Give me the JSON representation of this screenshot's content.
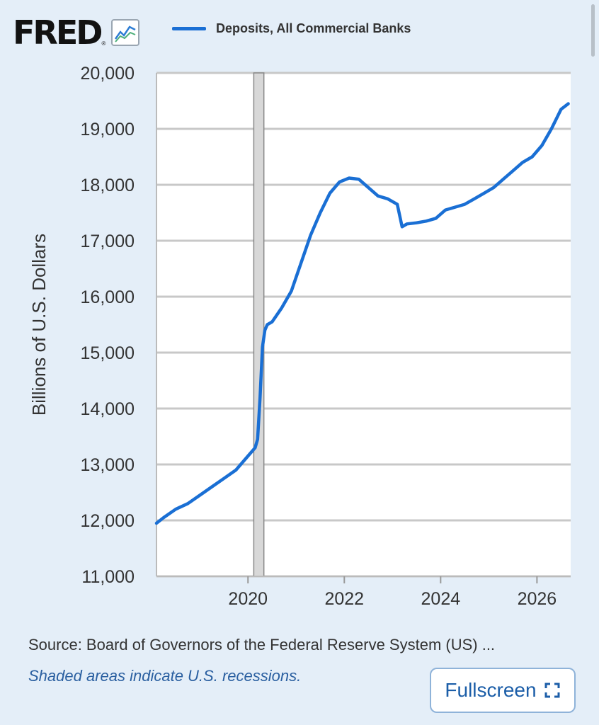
{
  "header": {
    "logo_text": "FRED",
    "logo_registered": "®",
    "logo_icon": "line-chart-icon"
  },
  "chart_data": {
    "type": "line",
    "title": "",
    "xlabel": "",
    "ylabel": "Billions of U.S. Dollars",
    "xlim": [
      2018.1,
      2026.7
    ],
    "ylim": [
      11000,
      20000
    ],
    "y_ticks": [
      11000,
      12000,
      13000,
      14000,
      15000,
      16000,
      17000,
      18000,
      19000,
      20000
    ],
    "y_tick_labels": [
      "11,000",
      "12,000",
      "13,000",
      "14,000",
      "15,000",
      "16,000",
      "17,000",
      "18,000",
      "19,000",
      "20,000"
    ],
    "x_ticks": [
      2020,
      2022,
      2024,
      2026
    ],
    "x_tick_labels": [
      "2020",
      "2022",
      "2024",
      "2026"
    ],
    "grid": true,
    "legend_position": "top",
    "recession_shading": [
      [
        2020.12,
        2020.33
      ]
    ],
    "series": [
      {
        "name": "Deposits, All Commercial Banks",
        "color": "#1a6fd4",
        "x": [
          2018.1,
          2018.25,
          2018.5,
          2018.75,
          2019.0,
          2019.25,
          2019.5,
          2019.75,
          2020.0,
          2020.15,
          2020.2,
          2020.25,
          2020.3,
          2020.35,
          2020.4,
          2020.5,
          2020.7,
          2020.9,
          2021.1,
          2021.3,
          2021.5,
          2021.7,
          2021.9,
          2022.1,
          2022.3,
          2022.5,
          2022.7,
          2022.9,
          2023.1,
          2023.2,
          2023.3,
          2023.5,
          2023.7,
          2023.9,
          2024.1,
          2024.3,
          2024.5,
          2024.7,
          2024.9,
          2025.1,
          2025.3,
          2025.5,
          2025.7,
          2025.9,
          2026.1,
          2026.3,
          2026.5,
          2026.65
        ],
        "values": [
          11950,
          12050,
          12200,
          12300,
          12450,
          12600,
          12750,
          12900,
          13150,
          13300,
          13450,
          14200,
          15100,
          15400,
          15500,
          15550,
          15800,
          16100,
          16600,
          17100,
          17500,
          17850,
          18050,
          18120,
          18100,
          17950,
          17800,
          17750,
          17650,
          17250,
          17300,
          17320,
          17350,
          17400,
          17550,
          17600,
          17650,
          17750,
          17850,
          17950,
          18100,
          18250,
          18400,
          18500,
          18700,
          19000,
          19350,
          19450
        ]
      }
    ]
  },
  "footer": {
    "source": "Source: Board of Governors of the Federal Reserve System (US) ...",
    "recession_note": "Shaded areas indicate U.S. recessions.",
    "fullscreen_label": "Fullscreen",
    "fullscreen_icon": "expand-icon"
  }
}
